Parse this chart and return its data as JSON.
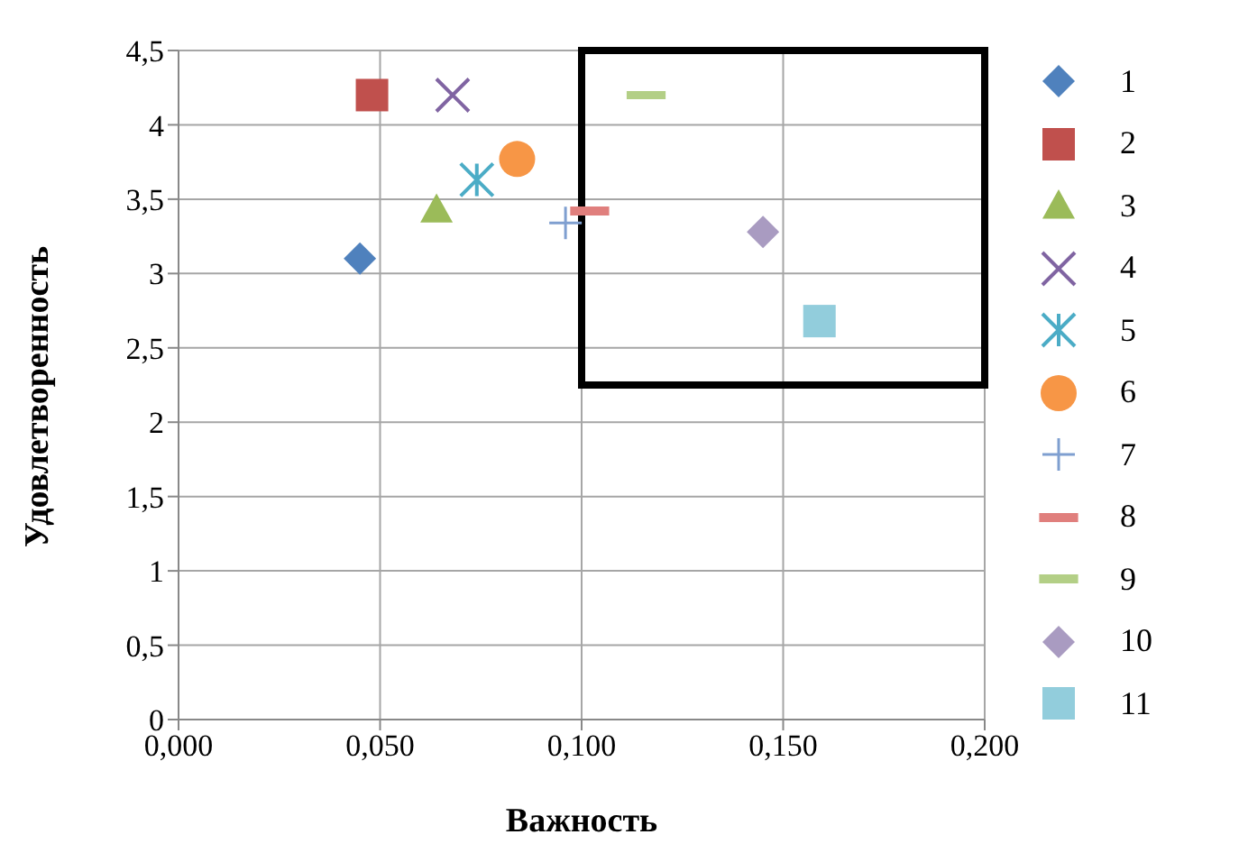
{
  "chart_data": {
    "type": "scatter",
    "xlabel": "Важность",
    "ylabel": "Удовлетворенность",
    "xlim": [
      0,
      0.2
    ],
    "ylim": [
      0,
      4.5
    ],
    "xticks": [
      {
        "value": 0,
        "label": "0,000"
      },
      {
        "value": 0.05,
        "label": "0,050"
      },
      {
        "value": 0.1,
        "label": "0,100"
      },
      {
        "value": 0.15,
        "label": "0,150"
      },
      {
        "value": 0.2,
        "label": "0,200"
      }
    ],
    "yticks": [
      {
        "value": 0,
        "label": "0"
      },
      {
        "value": 0.5,
        "label": "0,5"
      },
      {
        "value": 1,
        "label": "1"
      },
      {
        "value": 1.5,
        "label": "1,5"
      },
      {
        "value": 2,
        "label": "2"
      },
      {
        "value": 2.5,
        "label": "2,5"
      },
      {
        "value": 3,
        "label": "3"
      },
      {
        "value": 3.5,
        "label": "3,5"
      },
      {
        "value": 4,
        "label": "4"
      },
      {
        "value": 4.5,
        "label": "4,5"
      }
    ],
    "grid": true,
    "legend": "right",
    "series": [
      {
        "name": "1",
        "color": "#4f81bd",
        "marker": "diamond",
        "x": [
          0.045
        ],
        "values": [
          3.1
        ]
      },
      {
        "name": "2",
        "color": "#c0504d",
        "marker": "square",
        "x": [
          0.048
        ],
        "values": [
          4.2
        ]
      },
      {
        "name": "3",
        "color": "#9bbb59",
        "marker": "triangle",
        "x": [
          0.064
        ],
        "values": [
          3.43
        ]
      },
      {
        "name": "4",
        "color": "#8064a2",
        "marker": "cross",
        "x": [
          0.068
        ],
        "values": [
          4.2
        ]
      },
      {
        "name": "5",
        "color": "#4bacc6",
        "marker": "cross",
        "x": [
          0.074
        ],
        "values": [
          3.63
        ]
      },
      {
        "name": "6",
        "color": "#f79646",
        "marker": "circle",
        "x": [
          0.084
        ],
        "values": [
          3.77
        ]
      },
      {
        "name": "7",
        "color": "#7f9fd0",
        "marker": "cross",
        "x": [
          0.096
        ],
        "values": [
          3.34
        ]
      },
      {
        "name": "8",
        "color": "#e07f7d",
        "x": [
          0.102
        ],
        "values": [
          3.42
        ]
      },
      {
        "name": "9",
        "color": "#b3cf86",
        "x": [
          0.116
        ],
        "values": [
          4.2
        ]
      },
      {
        "name": "10",
        "color": "#a99bc1",
        "marker": "diamond",
        "x": [
          0.145
        ],
        "values": [
          3.28
        ]
      },
      {
        "name": "11",
        "color": "#92cddc",
        "marker": "square",
        "x": [
          0.159
        ],
        "values": [
          2.68
        ]
      }
    ]
  }
}
